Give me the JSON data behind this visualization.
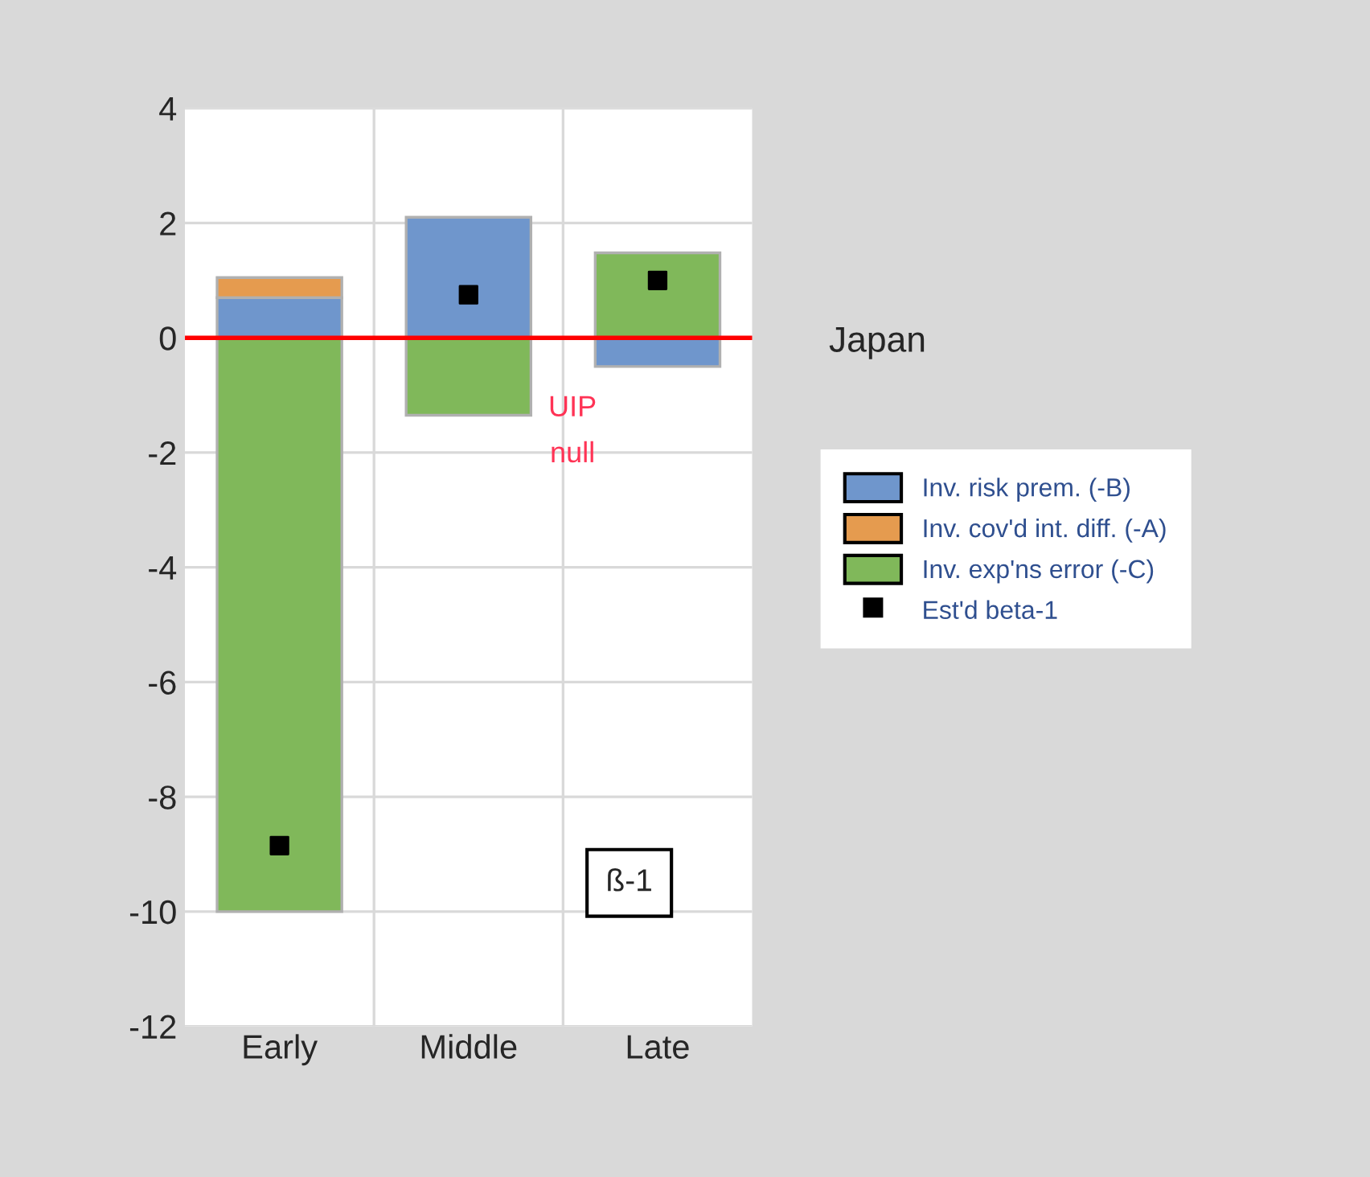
{
  "chart_data": {
    "type": "bar",
    "stacked": true,
    "categories": [
      "Early",
      "Middle",
      "Late"
    ],
    "series": [
      {
        "name": "Inv. risk prem. (-B)",
        "color": "#6f96cc",
        "values": [
          0.7,
          2.1,
          -0.5
        ]
      },
      {
        "name": "Inv. cov'd int. diff. (-A)",
        "color": "#e59b4f",
        "values": [
          0.35,
          null,
          null
        ]
      },
      {
        "name": "Inv. exp'ns error (-C)",
        "color": "#80b85a",
        "values": [
          -10,
          -1.35,
          1.48
        ]
      },
      {
        "name": "Est'd beta-1",
        "type": "scatter",
        "color": "#000000",
        "marker": "square",
        "x": [
          "Early",
          "Middle",
          "Late"
        ],
        "values": [
          -8.85,
          0.75,
          1.0
        ]
      }
    ],
    "ylim": [
      -12,
      4
    ],
    "yticks": [
      -12,
      -10,
      -8,
      -6,
      -4,
      -2,
      0,
      2,
      4
    ],
    "grid": true,
    "legend": "right",
    "ref_lines": [
      {
        "axis": "y",
        "value": 0,
        "label": "UIP null",
        "color": "#ff0000"
      }
    ],
    "annotations": [
      "Japan",
      "ß-1"
    ]
  }
}
